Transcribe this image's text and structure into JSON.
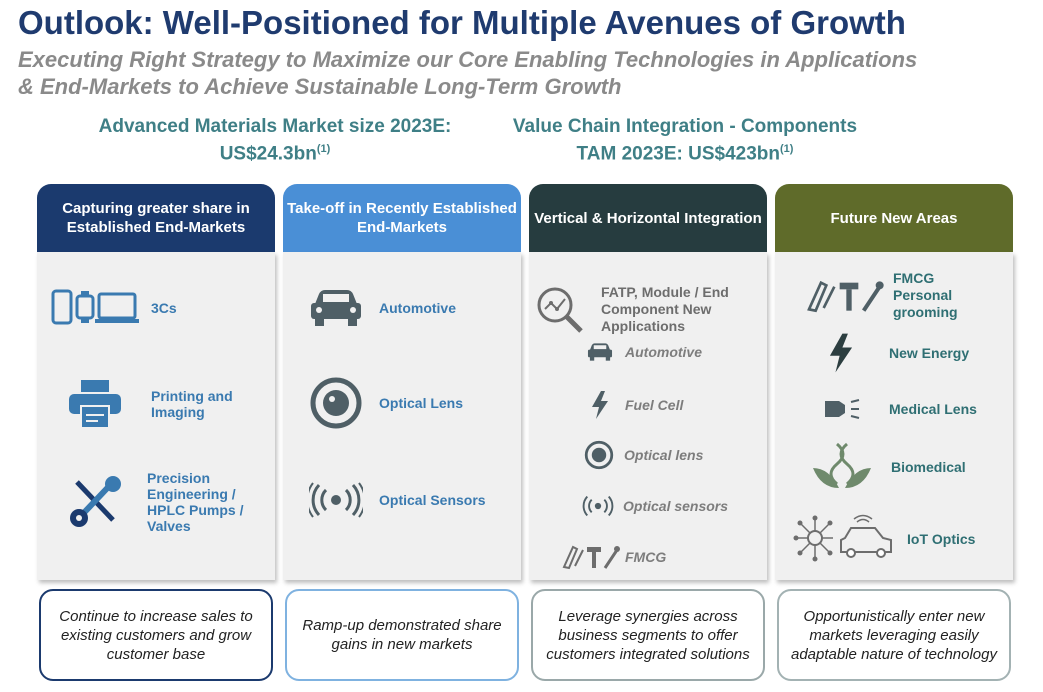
{
  "header": {
    "title": "Outlook: Well-Positioned for Multiple Avenues of Growth",
    "subtitle": "Executing Right Strategy to Maximize our Core Enabling Technologies in Applications & End-Markets to Achieve Sustainable Long-Term Growth"
  },
  "market_left": {
    "line1": "Advanced Materials Market size 2023E:",
    "line2": "US$24.3bn",
    "footnote": "(1)"
  },
  "market_right": {
    "line1": "Value Chain Integration - Components",
    "line2": "TAM 2023E: US$423bn",
    "footnote": "(1)"
  },
  "columns": [
    {
      "header": "Capturing greater share in Established End-Markets",
      "color": "#1b3a6e",
      "items": [
        "3Cs",
        "Printing and Imaging",
        "Precision Engineering / HPLC Pumps / Valves"
      ],
      "note": "Continue to increase sales to existing customers and grow customer base"
    },
    {
      "header": "Take-off in Recently Established End-Markets",
      "color": "#4a8fd6",
      "items": [
        "Automotive",
        "Optical Lens",
        "Optical Sensors"
      ],
      "note": "Ramp-up demonstrated share gains in new markets"
    },
    {
      "header": "Vertical & Horizontal Integration",
      "color": "#263c3f",
      "items": [
        "FATP, Module / End Component New Applications"
      ],
      "sub_items": [
        "Automotive",
        "Fuel Cell",
        "Optical lens",
        "Optical sensors",
        "FMCG"
      ],
      "note": "Leverage synergies across business segments to offer customers integrated solutions"
    },
    {
      "header": "Future New Areas",
      "color": "#5f6b2a",
      "items": [
        "FMCG Personal grooming",
        "New Energy",
        "Medical Lens",
        "Biomedical",
        "IoT Optics"
      ],
      "note": "Opportunistically enter new markets leveraging easily adaptable nature of technology"
    }
  ],
  "icons": {
    "3cs": "devices-icon",
    "printing": "printer-icon",
    "precision": "tools-icon",
    "automotive": "car-icon",
    "optical_lens": "lens-icon",
    "optical_sensors": "sensor-icon",
    "fatp": "magnifier-chart-icon",
    "fuel_cell": "lightning-icon",
    "fmcg": "grooming-tools-icon",
    "new_energy": "lightning-icon",
    "medical_lens": "medical-lens-icon",
    "biomedical": "dna-plant-icon",
    "iot": "iot-car-icon"
  }
}
